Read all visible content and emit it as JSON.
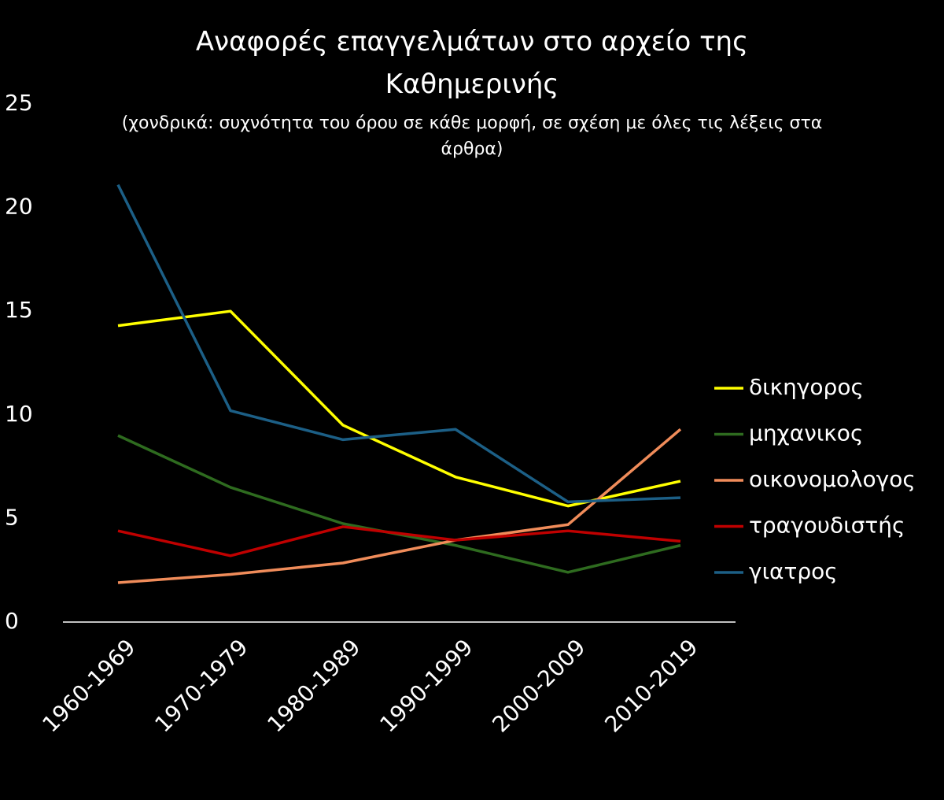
{
  "chart_data": {
    "type": "line",
    "title": "Αναφορές επαγγελμάτων στο αρχείο της Καθημερινής",
    "subtitle": "(χονδρικά: συχνότητα του όρου σε κάθε μορφή, σε σχέση με όλες τις λέξεις στα άρθρα)",
    "categories": [
      "1960-1969",
      "1970-1979",
      "1980-1989",
      "1990-1999",
      "2000-2009",
      "2010-2019"
    ],
    "series": [
      {
        "name": "δικηγορος",
        "color": "#ffff00",
        "values": [
          14.3,
          15.0,
          9.5,
          7.0,
          5.6,
          6.8
        ]
      },
      {
        "name": "μηχανικος",
        "color": "#2e6b1f",
        "values": [
          9.0,
          6.5,
          4.75,
          3.7,
          2.4,
          3.7
        ]
      },
      {
        "name": "οικονομολογος",
        "color": "#f08c5a",
        "values": [
          1.9,
          2.3,
          2.85,
          3.95,
          4.7,
          9.3
        ]
      },
      {
        "name": "τραγουδιστής",
        "color": "#c00000",
        "values": [
          4.4,
          3.2,
          4.6,
          3.95,
          4.4,
          3.9
        ]
      },
      {
        "name": "γιατρος",
        "color": "#1c5f86",
        "values": [
          21.1,
          10.2,
          8.8,
          9.3,
          5.8,
          6.0
        ]
      }
    ],
    "ylim": [
      0,
      25
    ],
    "yticks": [
      0,
      5,
      10,
      15,
      20,
      25
    ],
    "grid": false,
    "legend": "right"
  }
}
